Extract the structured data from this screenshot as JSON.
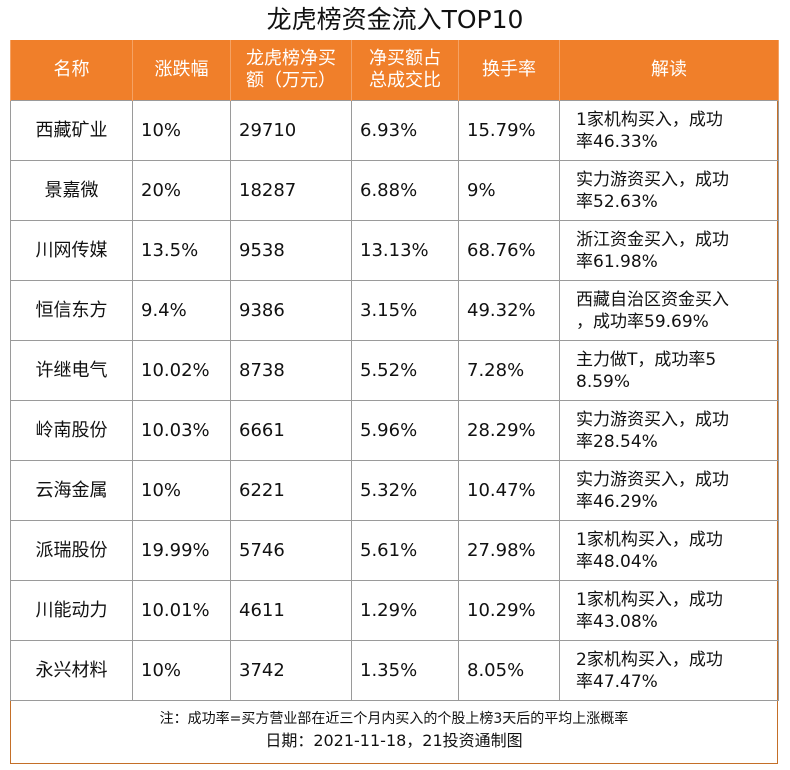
{
  "title": "龙虎榜资金流入TOP10",
  "headers": {
    "name": "名称",
    "change": "涨跌幅",
    "net_buy_l1": "龙虎榜净买",
    "net_buy_l2": "额（万元）",
    "ratio_l1": "净买额占",
    "ratio_l2": "总成交比",
    "turnover": "换手率",
    "interp": "解读"
  },
  "rows": [
    {
      "name": "西藏矿业",
      "change": "10%",
      "net_buy": "29710",
      "ratio": "6.93%",
      "turnover": "15.79%",
      "interp_l1": "1家机构买入，成功",
      "interp_l2": "率46.33%"
    },
    {
      "name": "景嘉微",
      "change": "20%",
      "net_buy": "18287",
      "ratio": "6.88%",
      "turnover": "9%",
      "interp_l1": "实力游资买入，成功",
      "interp_l2": "率52.63%"
    },
    {
      "name": "川网传媒",
      "change": "13.5%",
      "net_buy": "9538",
      "ratio": "13.13%",
      "turnover": "68.76%",
      "interp_l1": "浙江资金买入，成功",
      "interp_l2": "率61.98%"
    },
    {
      "name": "恒信东方",
      "change": "9.4%",
      "net_buy": "9386",
      "ratio": "3.15%",
      "turnover": "49.32%",
      "interp_l1": "西藏自治区资金买入",
      "interp_l2": "，成功率59.69%"
    },
    {
      "name": "许继电气",
      "change": "10.02%",
      "net_buy": "8738",
      "ratio": "5.52%",
      "turnover": "7.28%",
      "interp_l1": "主力做T，成功率5",
      "interp_l2": "8.59%"
    },
    {
      "name": "岭南股份",
      "change": "10.03%",
      "net_buy": "6661",
      "ratio": "5.96%",
      "turnover": "28.29%",
      "interp_l1": "实力游资买入，成功",
      "interp_l2": "率28.54%"
    },
    {
      "name": "云海金属",
      "change": "10%",
      "net_buy": "6221",
      "ratio": "5.32%",
      "turnover": "10.47%",
      "interp_l1": "实力游资买入，成功",
      "interp_l2": "率46.29%"
    },
    {
      "name": "派瑞股份",
      "change": "19.99%",
      "net_buy": "5746",
      "ratio": "5.61%",
      "turnover": "27.98%",
      "interp_l1": "1家机构买入，成功",
      "interp_l2": "率48.04%"
    },
    {
      "name": "川能动力",
      "change": "10.01%",
      "net_buy": "4611",
      "ratio": "1.29%",
      "turnover": "10.29%",
      "interp_l1": "1家机构买入，成功",
      "interp_l2": "率43.08%"
    },
    {
      "name": "永兴材料",
      "change": "10%",
      "net_buy": "3742",
      "ratio": "1.35%",
      "turnover": "8.05%",
      "interp_l1": "2家机构买入，成功",
      "interp_l2": "率47.47%"
    }
  ],
  "note": "注：成功率=买方营业部在近三个月内买入的个股上榜3天后的平均上涨概率",
  "date_line": "日期：2021-11-18，21投资通制图",
  "colors": {
    "header_bg": "#f07f2a",
    "border": "#9a9a9a",
    "text": "#111111"
  }
}
